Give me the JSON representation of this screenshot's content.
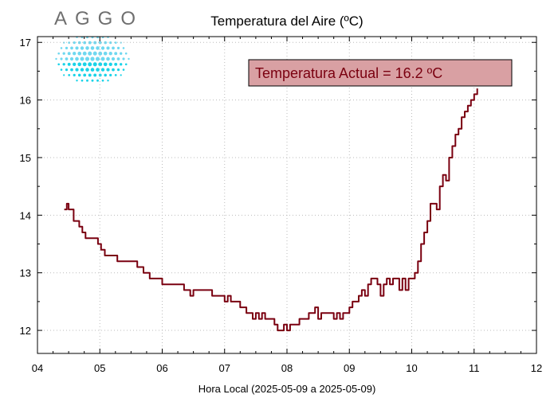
{
  "logo": {
    "text": "AGGO"
  },
  "chart_data": {
    "type": "line",
    "title": "Temperatura del Aire (ºC)",
    "xlabel": "Hora Local (2025-05-09 a 2025-05-09)",
    "ylabel": "",
    "x_unit": "hour",
    "xlim": [
      4,
      12
    ],
    "ylim": [
      11.6,
      17.1
    ],
    "x_ticks": [
      4,
      5,
      6,
      7,
      8,
      9,
      10,
      11,
      12
    ],
    "x_tick_labels": [
      "04",
      "05",
      "06",
      "07",
      "08",
      "09",
      "10",
      "11",
      "12"
    ],
    "y_ticks": [
      12,
      13,
      14,
      15,
      16,
      17
    ],
    "y_tick_labels": [
      "12",
      "13",
      "14",
      "15",
      "16",
      "17"
    ],
    "grid": true,
    "series": [
      {
        "color": "#7a0010",
        "x": [
          4.43,
          4.47,
          4.5,
          4.53,
          4.58,
          4.62,
          4.67,
          4.72,
          4.77,
          4.83,
          4.9,
          4.97,
          5.02,
          5.08,
          5.12,
          5.17,
          5.22,
          5.28,
          5.35,
          5.42,
          5.5,
          5.6,
          5.7,
          5.8,
          5.9,
          6.0,
          6.1,
          6.2,
          6.3,
          6.35,
          6.4,
          6.45,
          6.5,
          6.55,
          6.6,
          6.7,
          6.8,
          6.9,
          7.0,
          7.05,
          7.1,
          7.15,
          7.2,
          7.25,
          7.3,
          7.35,
          7.4,
          7.45,
          7.5,
          7.55,
          7.6,
          7.65,
          7.7,
          7.75,
          7.8,
          7.85,
          7.9,
          7.95,
          8.0,
          8.05,
          8.1,
          8.15,
          8.2,
          8.25,
          8.3,
          8.35,
          8.4,
          8.45,
          8.5,
          8.55,
          8.6,
          8.65,
          8.7,
          8.75,
          8.8,
          8.85,
          8.9,
          8.95,
          9.0,
          9.05,
          9.1,
          9.15,
          9.2,
          9.25,
          9.3,
          9.35,
          9.4,
          9.45,
          9.5,
          9.55,
          9.6,
          9.65,
          9.7,
          9.75,
          9.8,
          9.85,
          9.9,
          9.95,
          10.0,
          10.05,
          10.1,
          10.15,
          10.2,
          10.25,
          10.3,
          10.35,
          10.4,
          10.45,
          10.5,
          10.55,
          10.6,
          10.65,
          10.7,
          10.75,
          10.8,
          10.85,
          10.9,
          10.95,
          11.0,
          11.03,
          11.05
        ],
        "y": [
          14.1,
          14.2,
          14.1,
          14.1,
          13.9,
          13.9,
          13.8,
          13.7,
          13.6,
          13.6,
          13.6,
          13.5,
          13.4,
          13.3,
          13.3,
          13.3,
          13.3,
          13.2,
          13.2,
          13.2,
          13.2,
          13.1,
          13.0,
          12.9,
          12.9,
          12.8,
          12.8,
          12.8,
          12.8,
          12.7,
          12.7,
          12.6,
          12.7,
          12.7,
          12.7,
          12.7,
          12.6,
          12.6,
          12.5,
          12.6,
          12.5,
          12.5,
          12.5,
          12.4,
          12.4,
          12.3,
          12.3,
          12.2,
          12.3,
          12.2,
          12.3,
          12.2,
          12.2,
          12.2,
          12.1,
          12.0,
          12.0,
          12.1,
          12.0,
          12.1,
          12.1,
          12.1,
          12.2,
          12.2,
          12.2,
          12.3,
          12.3,
          12.4,
          12.2,
          12.3,
          12.3,
          12.3,
          12.3,
          12.2,
          12.3,
          12.2,
          12.3,
          12.3,
          12.4,
          12.5,
          12.5,
          12.6,
          12.7,
          12.6,
          12.8,
          12.9,
          12.9,
          12.8,
          12.6,
          12.8,
          12.9,
          12.8,
          12.9,
          12.9,
          12.7,
          12.9,
          12.7,
          12.9,
          12.9,
          13.0,
          13.2,
          13.5,
          13.7,
          13.9,
          14.2,
          14.2,
          14.1,
          14.5,
          14.7,
          14.6,
          15.0,
          15.2,
          15.4,
          15.5,
          15.7,
          15.8,
          15.9,
          16.0,
          16.1,
          16.1,
          16.2
        ]
      }
    ],
    "annotation": {
      "text": "Temperatura Actual = 16.2 ºC",
      "box_color": "#d9a0a3",
      "text_color": "#7a0010",
      "placement": "top-right"
    }
  }
}
